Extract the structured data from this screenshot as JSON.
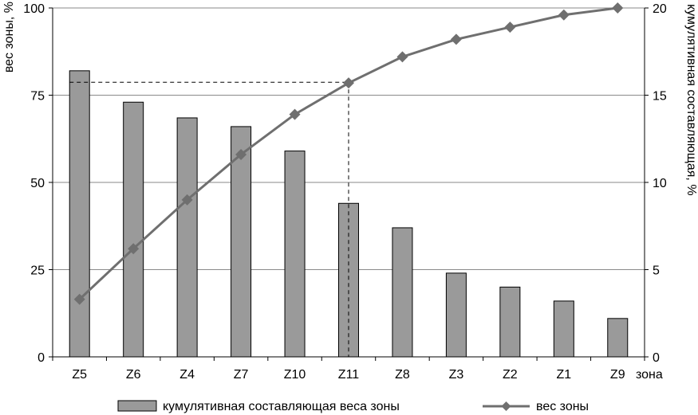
{
  "chart_data": {
    "type": "bar",
    "categories": [
      "Z5",
      "Z6",
      "Z4",
      "Z7",
      "Z10",
      "Z11",
      "Z8",
      "Z3",
      "Z2",
      "Z1",
      "Z9"
    ],
    "xlabel": "зона",
    "y_left": {
      "label": "вес зоны, %",
      "lim": [
        0,
        100
      ],
      "ticks": [
        "0",
        "25",
        "50",
        "75",
        "100"
      ]
    },
    "y_right": {
      "label": "кумулятивная составляющая, %",
      "lim": [
        0,
        20
      ],
      "ticks": [
        "0",
        "5",
        "10",
        "15",
        "20"
      ]
    },
    "grid": true,
    "legend_position": "bottom",
    "series": [
      {
        "name": "кумулятивная составляющая веса зоны",
        "kind": "bar",
        "axis": "left",
        "color": "#9a9a9a",
        "values": [
          82,
          73,
          68.5,
          66,
          59,
          44,
          37,
          24,
          20,
          16,
          11
        ]
      },
      {
        "name": "вес зоны",
        "kind": "line",
        "axis": "right",
        "marker": "diamond",
        "color": "#6f6f6f",
        "values": [
          3.3,
          6.2,
          9.0,
          11.6,
          13.9,
          15.7,
          17.2,
          18.2,
          18.9,
          19.6,
          20.0
        ]
      }
    ],
    "reference_lines": {
      "category": "Z11",
      "left_value": 78.7,
      "style": "dashed"
    }
  }
}
